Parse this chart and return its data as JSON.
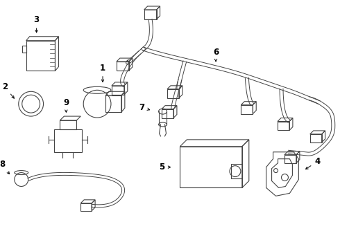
{
  "background_color": "#ffffff",
  "line_color": "#444444",
  "label_color": "#000000",
  "fig_width": 4.9,
  "fig_height": 3.6,
  "dpi": 100
}
